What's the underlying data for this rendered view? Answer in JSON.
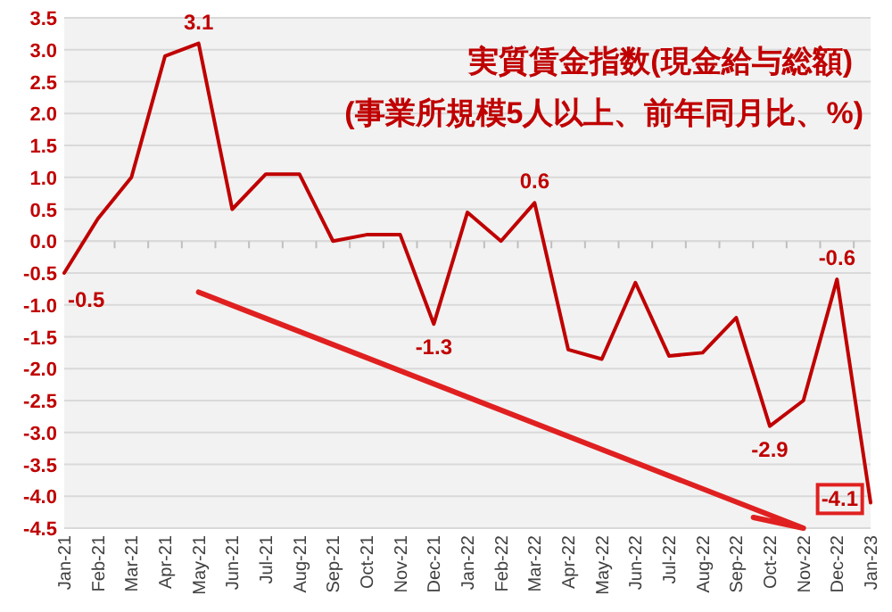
{
  "chart_data": {
    "type": "line",
    "title": "実質賃金指数(現金給与総額)",
    "subtitle": "(事業所規模5人以上、前年同月比、%)",
    "categories": [
      "Jan-21",
      "Feb-21",
      "Mar-21",
      "Apr-21",
      "May-21",
      "Jun-21",
      "Jul-21",
      "Aug-21",
      "Sep-21",
      "Oct-21",
      "Nov-21",
      "Dec-21",
      "Jan-22",
      "Feb-22",
      "Mar-22",
      "Apr-22",
      "May-22",
      "Jun-22",
      "Jul-22",
      "Aug-22",
      "Sep-22",
      "Oct-22",
      "Nov-22",
      "Dec-22",
      "Jan-23"
    ],
    "series": [
      {
        "color": "#c00000",
        "values": [
          -0.5,
          0.35,
          1.0,
          2.9,
          3.1,
          0.5,
          1.05,
          1.05,
          0.0,
          0.1,
          0.1,
          -1.3,
          0.45,
          0.0,
          0.6,
          -1.7,
          -1.85,
          -0.65,
          -1.8,
          -1.75,
          -1.2,
          -2.9,
          -2.5,
          -0.6,
          -4.1
        ],
        "value_labels": [
          "-0.5",
          null,
          null,
          null,
          "3.1",
          null,
          null,
          null,
          null,
          null,
          null,
          "-1.3",
          null,
          null,
          "0.6",
          null,
          null,
          null,
          null,
          null,
          null,
          "-2.9",
          null,
          "-0.6",
          "-4.1"
        ]
      }
    ],
    "ylim": [
      -4.5,
      3.5
    ],
    "yticks": [
      {
        "value": 3.5,
        "label": "3.5"
      },
      {
        "value": 3,
        "label": "3.0"
      },
      {
        "value": 2.5,
        "label": "2.5"
      },
      {
        "value": 2,
        "label": "2.0"
      },
      {
        "value": 1.5,
        "label": "1.5"
      },
      {
        "value": 1,
        "label": "1.0"
      },
      {
        "value": 0.5,
        "label": "0.5"
      },
      {
        "value": 0,
        "label": "0.0"
      },
      {
        "value": -0.5,
        "label": "-0.5"
      },
      {
        "value": -1,
        "label": "-1.0"
      },
      {
        "value": -1.5,
        "label": "-1.5"
      },
      {
        "value": -2,
        "label": "-2.0"
      },
      {
        "value": -2.5,
        "label": "-2.5"
      },
      {
        "value": -3,
        "label": "-3.0"
      },
      {
        "value": -3.5,
        "label": "-3.5"
      },
      {
        "value": -4,
        "label": "-4.0"
      },
      {
        "value": -4.5,
        "label": "-4.5"
      }
    ],
    "grid": "y",
    "marker": "none",
    "line_style": "solid"
  }
}
